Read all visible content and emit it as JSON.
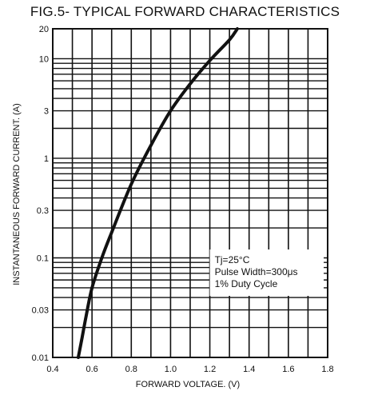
{
  "chart_data": {
    "type": "line",
    "title": "FIG.5- TYPICAL FORWARD CHARACTERISTICS",
    "xlabel": "FORWARD VOLTAGE. (V)",
    "ylabel": "INSTANTANEOUS FORWARD CURRENT. (A)",
    "xlim": [
      0.4,
      1.8
    ],
    "ylim": [
      0.01,
      20
    ],
    "yscale": "log",
    "grid": true,
    "x_ticks": [
      "0.4",
      "0.6",
      "0.8",
      "1.0",
      "1.2",
      "1.4",
      "1.6",
      "1.8"
    ],
    "y_ticks": [
      "0.01",
      "0.03",
      "0.1",
      "0.3",
      "1",
      "3",
      "10",
      "20"
    ],
    "series": [
      {
        "color": "#111111",
        "x": [
          0.53,
          0.55,
          0.57,
          0.6,
          0.65,
          0.7,
          0.8,
          0.9,
          1.0,
          1.1,
          1.2,
          1.3,
          1.34
        ],
        "y": [
          0.01,
          0.016,
          0.026,
          0.05,
          0.1,
          0.18,
          0.55,
          1.35,
          3.0,
          5.6,
          9.6,
          15.5,
          20
        ]
      }
    ],
    "annotations": [
      "Tj=25°C",
      "Pulse Width=300μs",
      "1% Duty Cycle"
    ]
  }
}
